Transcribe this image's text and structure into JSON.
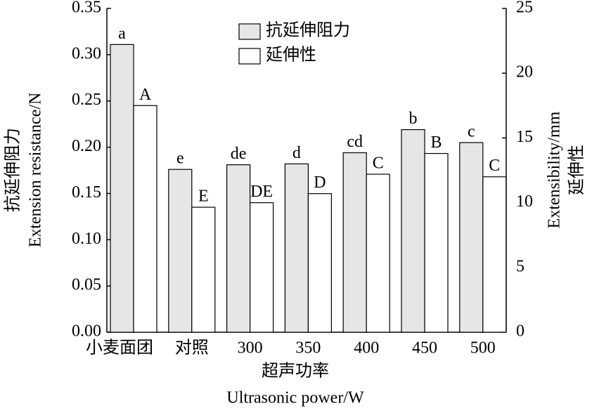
{
  "chart_data": {
    "type": "bar",
    "categories": [
      "小麦面团",
      "对照",
      "300",
      "350",
      "400",
      "450",
      "500"
    ],
    "x_label": "超声功率",
    "x_label_en": "Ultrasonic power/W",
    "y_label": "抗延伸阻力",
    "y_label_en": "Extension resistance/N",
    "y2_label_en": "Extensibility/mm",
    "y2_label": "延伸性",
    "ylim": [
      0,
      0.35
    ],
    "yticks": [
      {
        "value": 0,
        "label": "0.00"
      },
      {
        "value": 0.05,
        "label": "0.05"
      },
      {
        "value": 0.1,
        "label": "0.10"
      },
      {
        "value": 0.15,
        "label": "0.15"
      },
      {
        "value": 0.2,
        "label": "0.20"
      },
      {
        "value": 0.25,
        "label": "0.25"
      },
      {
        "value": 0.3,
        "label": "0.30"
      },
      {
        "value": 0.35,
        "label": "0.35"
      }
    ],
    "y2lim": [
      0,
      25
    ],
    "y2ticks": [
      0,
      5,
      10,
      15,
      20,
      25
    ],
    "legend": "top-center",
    "series": [
      {
        "name": "抗延伸阻力",
        "color": "#e6e6e6",
        "values": [
          0.311,
          0.176,
          0.181,
          0.182,
          0.194,
          0.219,
          0.205
        ],
        "letters": [
          "a",
          "e",
          "de",
          "d",
          "cd",
          "b",
          "c"
        ]
      },
      {
        "name": "延伸性",
        "color": "#ffffff",
        "axis": "y2",
        "values": [
          17.5,
          9.65,
          10.0,
          10.7,
          12.2,
          13.8,
          12.0
        ],
        "letters": [
          "A",
          "E",
          "DE",
          "D",
          "C",
          "B",
          "C"
        ]
      }
    ]
  }
}
